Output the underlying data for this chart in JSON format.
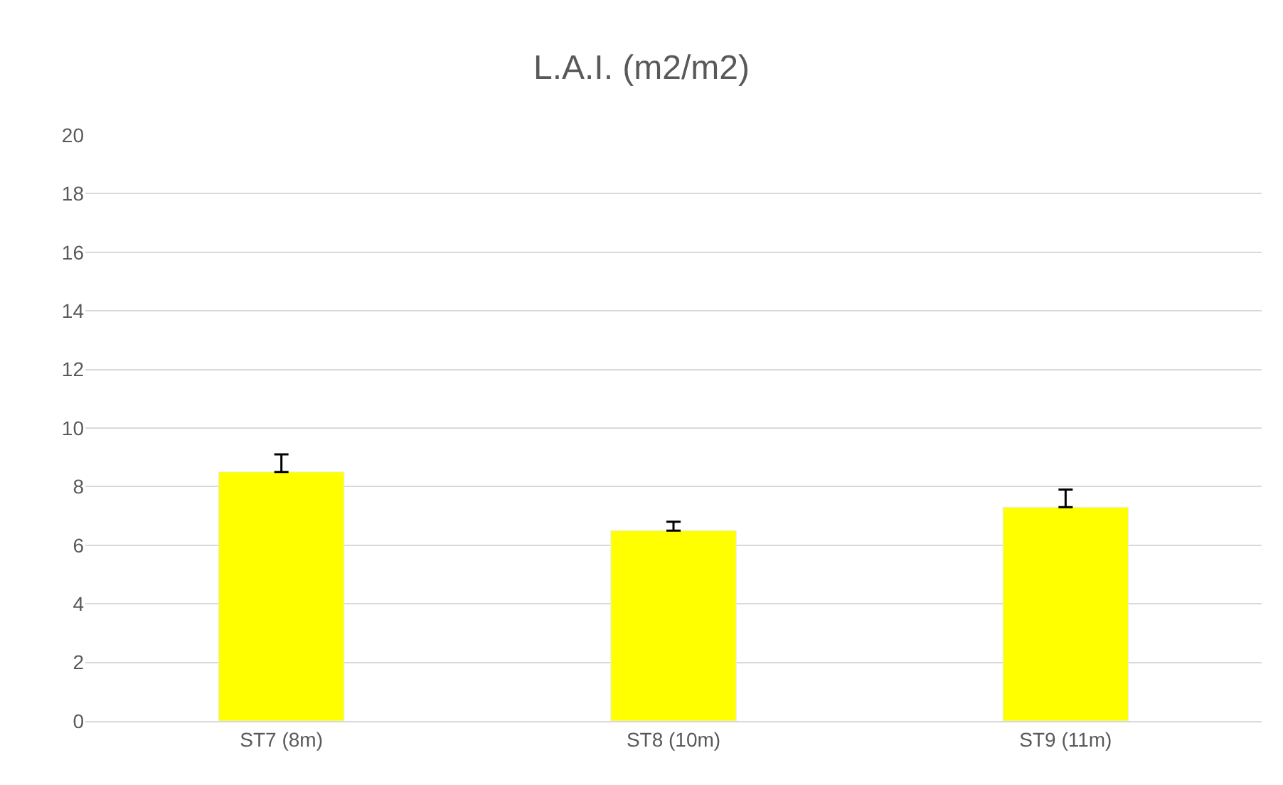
{
  "chart_data": {
    "type": "bar",
    "title": "L.A.I. (m2/m2)",
    "categories": [
      "ST7 (8m)",
      "ST8 (10m)",
      "ST9 (11m)"
    ],
    "values": [
      8.5,
      6.5,
      7.3
    ],
    "errors": [
      [
        8.5,
        9.1
      ],
      [
        6.5,
        6.8
      ],
      [
        7.3,
        7.9
      ]
    ],
    "color": "#ffff00",
    "ylim": [
      0,
      20
    ],
    "yticks": [
      0,
      2,
      4,
      6,
      8,
      10,
      12,
      14,
      16,
      18,
      20
    ],
    "grid": "y"
  }
}
